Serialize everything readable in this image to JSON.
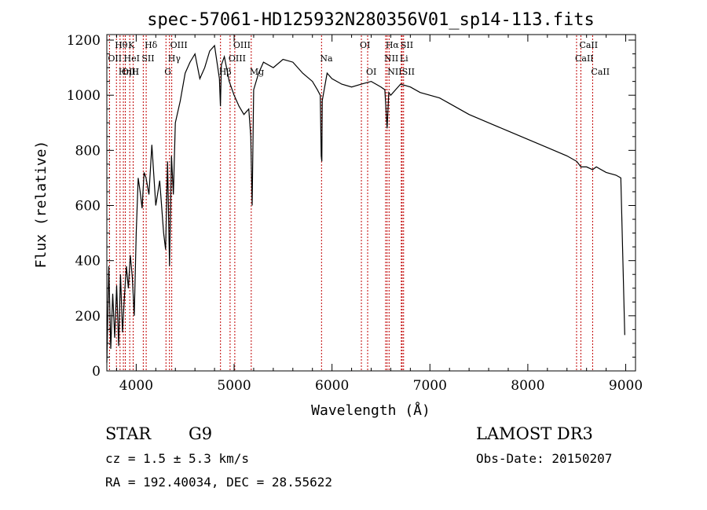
{
  "chart_data": {
    "type": "line",
    "title": "spec-57061-HD125932N280356V01_sp14-113.fits",
    "xlabel": "Wavelength (Å)",
    "ylabel": "Flux (relative)",
    "xlim": [
      3700,
      9100
    ],
    "ylim": [
      0,
      1220
    ],
    "x_ticks": [
      4000,
      5000,
      6000,
      7000,
      8000,
      9000
    ],
    "y_ticks": [
      0,
      200,
      400,
      600,
      800,
      1000,
      1200
    ],
    "spectrum": {
      "x": [
        3700,
        3720,
        3740,
        3760,
        3780,
        3800,
        3820,
        3840,
        3860,
        3880,
        3900,
        3920,
        3940,
        3960,
        3980,
        4000,
        4020,
        4040,
        4060,
        4080,
        4100,
        4130,
        4160,
        4200,
        4240,
        4280,
        4300,
        4320,
        4340,
        4360,
        4380,
        4400,
        4450,
        4500,
        4550,
        4600,
        4650,
        4700,
        4750,
        4800,
        4850,
        4860,
        4870,
        4900,
        4950,
        5000,
        5050,
        5100,
        5150,
        5170,
        5184,
        5200,
        5250,
        5300,
        5400,
        5500,
        5600,
        5700,
        5800,
        5850,
        5880,
        5890,
        5896,
        5900,
        5950,
        6000,
        6100,
        6200,
        6300,
        6400,
        6500,
        6540,
        6563,
        6580,
        6600,
        6700,
        6800,
        6900,
        7000,
        7100,
        7200,
        7400,
        7600,
        7800,
        8000,
        8200,
        8400,
        8500,
        8542,
        8600,
        8662,
        8700,
        8800,
        8900,
        8950,
        8990
      ],
      "y": [
        30,
        380,
        80,
        280,
        120,
        310,
        90,
        350,
        140,
        270,
        380,
        300,
        420,
        340,
        200,
        500,
        700,
        650,
        590,
        720,
        700,
        640,
        820,
        600,
        690,
        500,
        440,
        760,
        380,
        780,
        640,
        900,
        980,
        1080,
        1120,
        1150,
        1060,
        1100,
        1160,
        1180,
        1060,
        960,
        1110,
        1140,
        1050,
        1000,
        960,
        930,
        950,
        850,
        600,
        1020,
        1080,
        1120,
        1100,
        1130,
        1120,
        1080,
        1050,
        1020,
        1000,
        780,
        760,
        980,
        1080,
        1060,
        1040,
        1030,
        1040,
        1050,
        1030,
        1020,
        880,
        1010,
        1000,
        1040,
        1030,
        1010,
        1000,
        990,
        970,
        930,
        900,
        870,
        840,
        810,
        780,
        760,
        740,
        740,
        730,
        740,
        720,
        710,
        700,
        130
      ]
    },
    "spectral_lines": [
      {
        "name": "Hθ",
        "wavelength": 3798
      },
      {
        "name": "OII",
        "wavelength": 3727
      },
      {
        "name": "OIII",
        "wavelength": 3869
      },
      {
        "name": "K",
        "wavelength": 3934
      },
      {
        "name": "HeI",
        "wavelength": 3889
      },
      {
        "name": "Hη",
        "wavelength": 3835
      },
      {
        "name": "SII",
        "wavelength": 4072
      },
      {
        "name": "H",
        "wavelength": 3969
      },
      {
        "name": "Hδ",
        "wavelength": 4102
      },
      {
        "name": "OIII",
        "wavelength": 4363
      },
      {
        "name": "Hγ",
        "wavelength": 4340
      },
      {
        "name": "G",
        "wavelength": 4304
      },
      {
        "name": "OIII",
        "wavelength": 5007
      },
      {
        "name": "OIII",
        "wavelength": 4959
      },
      {
        "name": "Hβ",
        "wavelength": 4861
      },
      {
        "name": "Mg",
        "wavelength": 5175
      },
      {
        "name": "Na",
        "wavelength": 5893
      },
      {
        "name": "OI",
        "wavelength": 6300
      },
      {
        "name": "OI",
        "wavelength": 6364
      },
      {
        "name": "Hα",
        "wavelength": 6563
      },
      {
        "name": "NII",
        "wavelength": 6548
      },
      {
        "name": "NII",
        "wavelength": 6583
      },
      {
        "name": "SII",
        "wavelength": 6716
      },
      {
        "name": "Li",
        "wavelength": 6708
      },
      {
        "name": "SII",
        "wavelength": 6731
      },
      {
        "name": "CaII",
        "wavelength": 8542
      },
      {
        "name": "CaII",
        "wavelength": 8498
      },
      {
        "name": "CaII",
        "wavelength": 8662
      }
    ]
  },
  "info": {
    "object_class": "STAR",
    "subclass": "G9",
    "survey": "LAMOST DR3",
    "cz": "cz = 1.5 ± 5.3 km/s",
    "obs_date": "Obs-Date: 20150207",
    "coords": "RA = 192.40034, DEC =  28.55622"
  },
  "colors": {
    "spectrum": "#000000",
    "line_marker": "#c00000",
    "axes": "#000000"
  }
}
